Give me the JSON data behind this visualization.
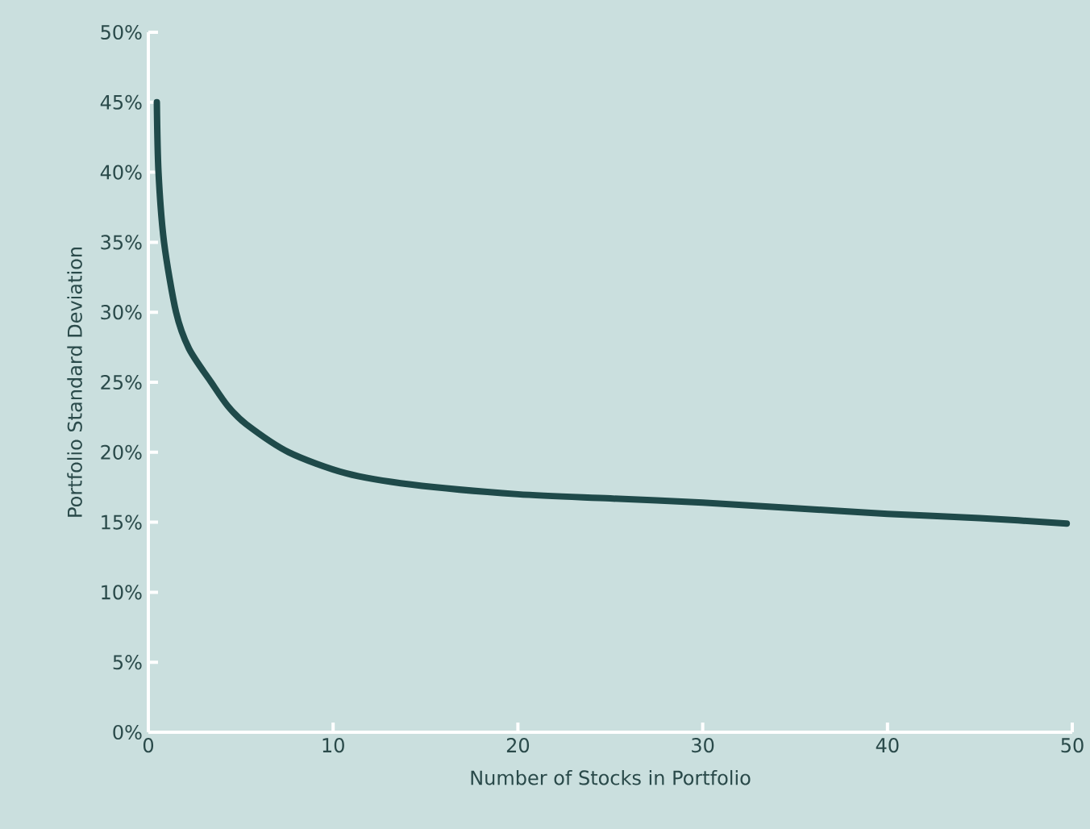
{
  "chart_data": {
    "type": "line",
    "xlabel": "Number of Stocks in Portfolio",
    "ylabel": "Portfolio Standard Deviation",
    "x": [
      0.46,
      0.55,
      0.85,
      1.5,
      2.2,
      3.4,
      4.3,
      5.3,
      7.6,
      10.7,
      14.2,
      20,
      25,
      30,
      35,
      40,
      45,
      49.7
    ],
    "series": [
      {
        "color": "#1f4a4a",
        "values": [
          45,
          40,
          35,
          30,
          27.4,
          25,
          23.3,
          22,
          20,
          18.5,
          17.7,
          17,
          16.7,
          16.4,
          16,
          15.6,
          15.3,
          14.9
        ]
      }
    ],
    "xlim": [
      0,
      50
    ],
    "ylim": [
      0,
      50
    ],
    "xticks": [
      0,
      10,
      20,
      30,
      40,
      50
    ],
    "yticks": [
      {
        "value": 0,
        "label": "0%"
      },
      {
        "value": 5,
        "label": "5%"
      },
      {
        "value": 10,
        "label": "10%"
      },
      {
        "value": 15,
        "label": "15%"
      },
      {
        "value": 20,
        "label": "20%"
      },
      {
        "value": 25,
        "label": "25%"
      },
      {
        "value": 30,
        "label": "30%"
      },
      {
        "value": 35,
        "label": "35%"
      },
      {
        "value": 40,
        "label": "40%"
      },
      {
        "value": 45,
        "label": "45%"
      },
      {
        "value": 50,
        "label": "50%"
      }
    ],
    "grid": false,
    "marker": "none",
    "line_style": "solid"
  }
}
